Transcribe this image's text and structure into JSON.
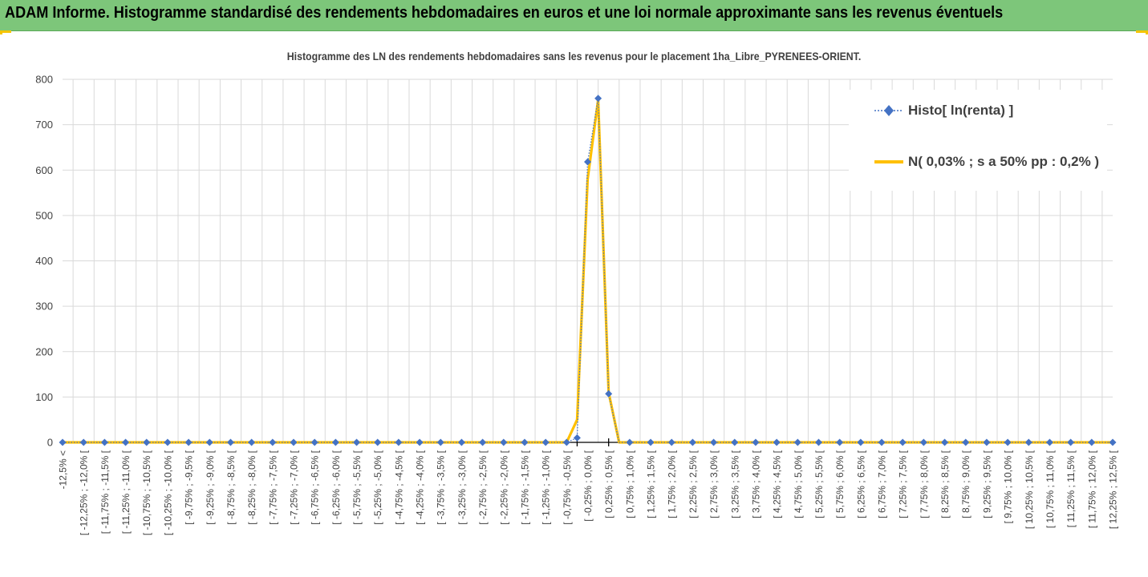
{
  "banner": {
    "title": "ADAM Informe. Histogramme standardisé des rendements hebdomadaires en euros et une loi normale approximante sans les revenus éventuels"
  },
  "colors": {
    "banner": "#7dc67a",
    "corner_marks": "#f5c400",
    "histo_series": "#4472c4",
    "normal_series": "#ffc000",
    "gridline": "#d9d9d9",
    "text": "#404040"
  },
  "chart_data": {
    "type": "line",
    "title": "Histogramme des LN des rendements hebdomadaires sans les revenus pour le placement 1ha_Libre_PYRENEES-ORIENT.",
    "ylim": [
      0,
      800
    ],
    "yticks": [
      0,
      100,
      200,
      300,
      400,
      500,
      600,
      700,
      800
    ],
    "grid": true,
    "legend_position": "top-right",
    "categories": [
      "-12,5% <",
      "[ -12,25% ; -12,0% [",
      "[ -11,75% ; -11,5% [",
      "[ -11,25% ; -11,0% [",
      "[ -10,75% ; -10,5% [",
      "[ -10,25% ; -10,0% [",
      "[ -9,75% ; -9,5% [",
      "[ -9,25% ; -9,0% [",
      "[ -8,75% ; -8,5% [",
      "[ -8,25% ; -8,0% [",
      "[ -7,75% ; -7,5% [",
      "[ -7,25% ; -7,0% [",
      "[ -6,75% ; -6,5% [",
      "[ -6,25% ; -6,0% [",
      "[ -5,75% ; -5,5% [",
      "[ -5,25% ; -5,0% [",
      "[ -4,75% ; -4,5% [",
      "[ -4,25% ; -4,0% [",
      "[ -3,75% ; -3,5% [",
      "[ -3,25% ; -3,0% [",
      "[ -2,75% ; -2,5% [",
      "[ -2,25% ; -2,0% [",
      "[ -1,75% ; -1,5% [",
      "[ -1,25% ; -1,0% [",
      "[ -0,75% ; -0,5% [",
      "[ -0,25% ; 0,0% [",
      "[ 0,25% ; 0,5% [",
      "[ 0,75% ; 1,0% [",
      "[ 1,25% ; 1,5% [",
      "[ 1,75% ; 2,0% [",
      "[ 2,25% ; 2,5% [",
      "[ 2,75% ; 3,0% [",
      "[ 3,25% ; 3,5% [",
      "[ 3,75% ; 4,0% [",
      "[ 4,25% ; 4,5% [",
      "[ 4,75% ; 5,0% [",
      "[ 5,25% ; 5,5% [",
      "[ 5,75% ; 6,0% [",
      "[ 6,25% ; 6,5% [",
      "[ 6,75% ; 7,0% [",
      "[ 7,25% ; 7,5% [",
      "[ 7,75% ; 8,0% [",
      "[ 8,25% ; 8,5% [",
      "[ 8,75% ; 9,0% [",
      "[ 9,25% ; 9,5% [",
      "[ 9,75% ; 10,0% [",
      "[ 10,25% ; 10,5% [",
      "[ 10,75% ; 11,0% [",
      "[ 11,25% ; 11,5% [",
      "[ 11,75% ; 12,0% [",
      "[ 12,25% ; 12,5% ["
    ],
    "x": [
      0,
      0.5,
      1,
      1.5,
      2,
      2.5,
      3,
      3.5,
      4,
      4.5,
      5,
      5.5,
      6,
      6.5,
      7,
      7.5,
      8,
      8.5,
      9,
      9.5,
      10,
      10.5,
      11,
      11.5,
      12,
      12.5,
      13,
      13.5,
      14,
      14.5,
      15,
      15.5,
      16,
      16.5,
      17,
      17.5,
      18,
      18.5,
      19,
      19.5,
      20,
      20.5,
      21,
      21.5,
      22,
      22.5,
      23,
      23.5,
      24,
      24.5,
      25,
      25.5,
      26,
      26.5,
      27,
      27.5,
      28,
      28.5,
      29,
      29.5,
      30,
      30.5,
      31,
      31.5,
      32,
      32.5,
      33,
      33.5,
      34,
      34.5,
      35,
      35.5,
      36,
      36.5,
      37,
      37.5,
      38,
      38.5,
      39,
      39.5,
      40,
      40.5,
      41,
      41.5,
      42,
      42.5,
      43,
      43.5,
      44,
      44.5,
      45,
      45.5,
      46,
      46.5,
      47,
      47.5,
      48,
      48.5,
      49,
      49.5,
      50
    ],
    "series": [
      {
        "name": "Histo[ ln(renta) ]",
        "style": "dotted-line-diamond-markers",
        "values": [
          0,
          0,
          0,
          0,
          0,
          0,
          0,
          0,
          0,
          0,
          0,
          0,
          0,
          0,
          0,
          0,
          0,
          0,
          0,
          0,
          0,
          0,
          0,
          0,
          0,
          0,
          0,
          0,
          0,
          0,
          0,
          0,
          0,
          0,
          0,
          0,
          0,
          0,
          0,
          0,
          0,
          0,
          0,
          0,
          0,
          0,
          0,
          0,
          0,
          10,
          618,
          758,
          107,
          0,
          0,
          0,
          0,
          0,
          0,
          0,
          0,
          0,
          0,
          0,
          0,
          0,
          0,
          0,
          0,
          0,
          0,
          0,
          0,
          0,
          0,
          0,
          0,
          0,
          0,
          0,
          0,
          0,
          0,
          0,
          0,
          0,
          0,
          0,
          0,
          0,
          0,
          0,
          0,
          0,
          0,
          0,
          0,
          0,
          0,
          0,
          0
        ]
      },
      {
        "name": "N( 0,03% ; s a 50% pp : 0,2% )",
        "style": "solid-line",
        "values": [
          0,
          0,
          0,
          0,
          0,
          0,
          0,
          0,
          0,
          0,
          0,
          0,
          0,
          0,
          0,
          0,
          0,
          0,
          0,
          0,
          0,
          0,
          0,
          0,
          0,
          0,
          0,
          0,
          0,
          0,
          0,
          0,
          0,
          0,
          0,
          0,
          0,
          0,
          0,
          0,
          0,
          0,
          0,
          0,
          0,
          0,
          0,
          0,
          0,
          50,
          580,
          755,
          110,
          0,
          0,
          0,
          0,
          0,
          0,
          0,
          0,
          0,
          0,
          0,
          0,
          0,
          0,
          0,
          0,
          0,
          0,
          0,
          0,
          0,
          0,
          0,
          0,
          0,
          0,
          0,
          0,
          0,
          0,
          0,
          0,
          0,
          0,
          0,
          0,
          0,
          0,
          0,
          0,
          0,
          0,
          0,
          0,
          0,
          0,
          0,
          0
        ]
      }
    ]
  }
}
